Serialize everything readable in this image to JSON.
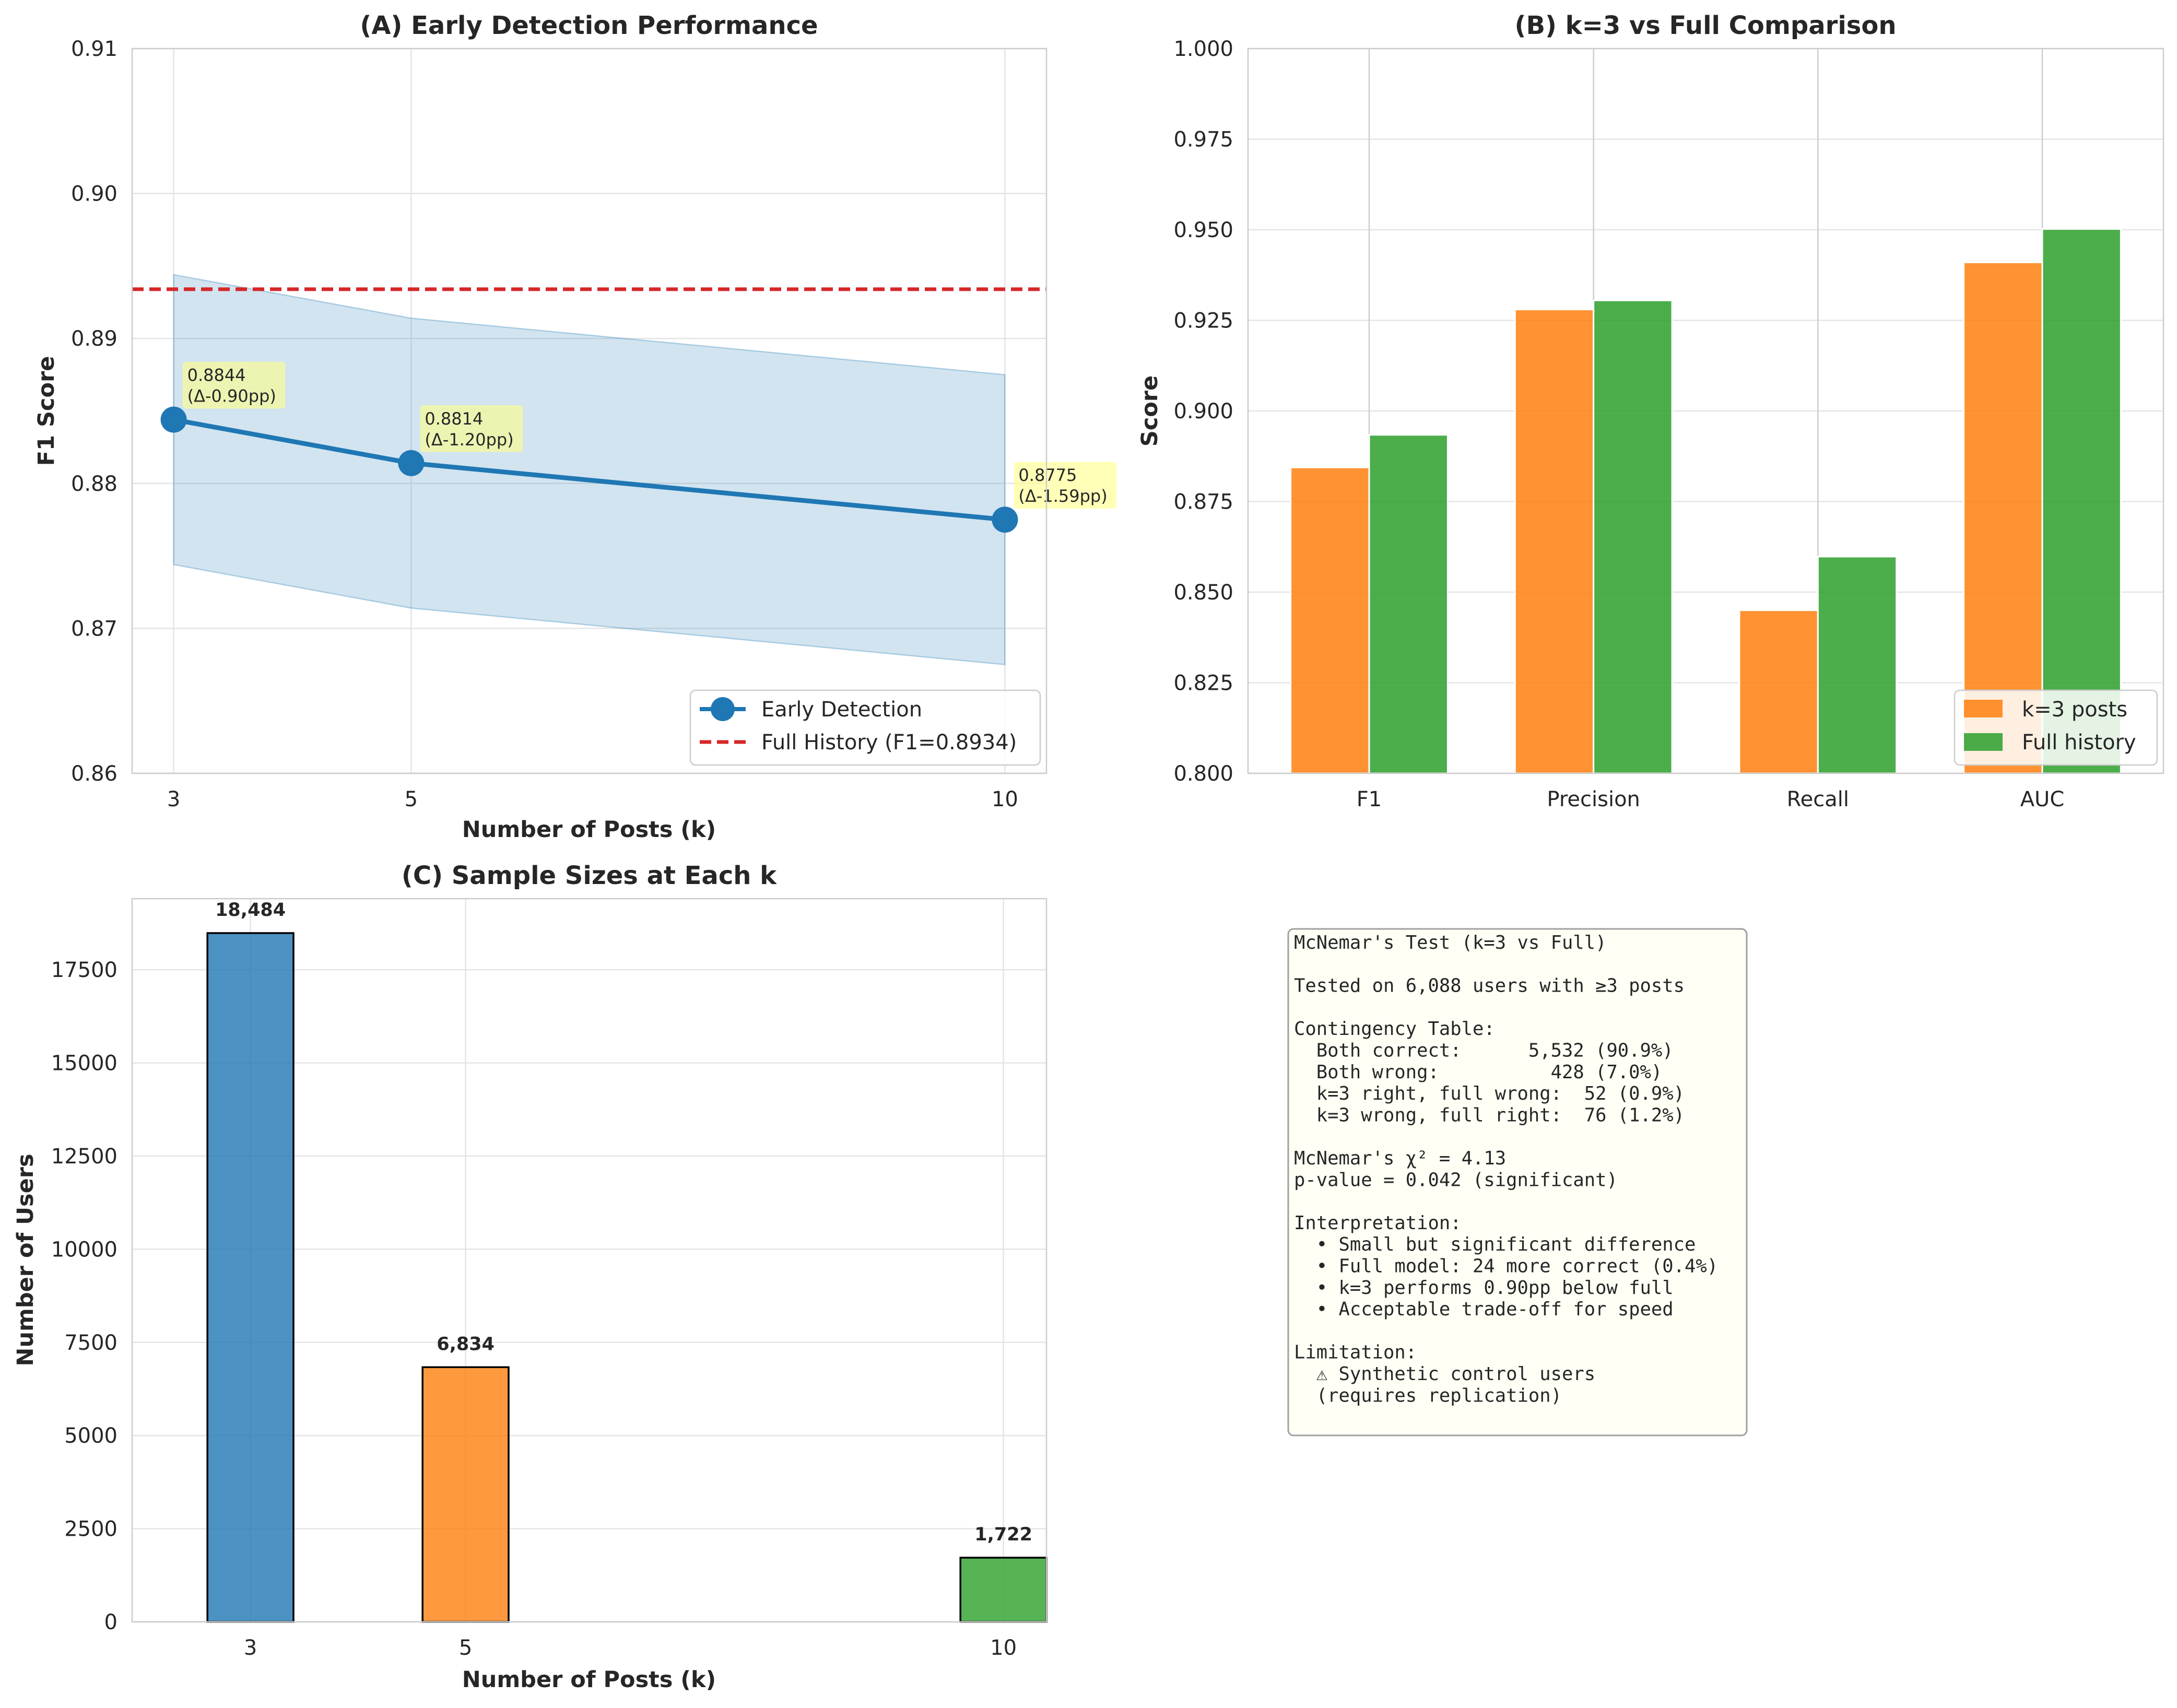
{
  "chart_data": [
    {
      "id": "A",
      "type": "line",
      "title": "(A) Early Detection Performance",
      "xlabel": "Number of Posts (k)",
      "ylabel": "F1 Score",
      "xlim": [
        2.65,
        10.35
      ],
      "ylim": [
        0.86,
        0.91
      ],
      "xticks": [
        3,
        5,
        10
      ],
      "yticks": [
        0.86,
        0.87,
        0.88,
        0.89,
        0.9,
        0.91
      ],
      "ytick_labels": [
        "0.86",
        "0.87",
        "0.88",
        "0.89",
        "0.90",
        "0.91"
      ],
      "grid": true,
      "series": [
        {
          "name": "Early Detection",
          "color": "#1f77b4",
          "x": [
            3,
            5,
            10
          ],
          "values": [
            0.8844,
            0.8814,
            0.8775
          ],
          "ci_low": [
            0.8744,
            0.8714,
            0.8675
          ],
          "ci_high": [
            0.8944,
            0.8914,
            0.8875
          ],
          "annotations": [
            [
              "0.8844",
              "(Δ-0.90pp)"
            ],
            [
              "0.8814",
              "(Δ-1.20pp)"
            ],
            [
              "0.8775",
              "(Δ-1.59pp)"
            ]
          ]
        }
      ],
      "reference_line": {
        "name": "Full History (F1=0.8934)",
        "value": 0.8934,
        "color": "#d62728"
      },
      "legend": {
        "position": "lower-right",
        "entries": [
          "Early Detection",
          "Full History (F1=0.8934)"
        ]
      }
    },
    {
      "id": "B",
      "type": "bar",
      "title": "(B) k=3 vs Full Comparison",
      "xlabel": "",
      "ylabel": "Score",
      "categories": [
        "F1",
        "Precision",
        "Recall",
        "AUC"
      ],
      "ylim": [
        0.8,
        1.0
      ],
      "yticks": [
        0.8,
        0.825,
        0.85,
        0.875,
        0.9,
        0.925,
        0.95,
        0.975,
        1.0
      ],
      "ytick_labels": [
        "0.800",
        "0.825",
        "0.850",
        "0.875",
        "0.900",
        "0.925",
        "0.950",
        "0.975",
        "1.000"
      ],
      "grid": true,
      "series": [
        {
          "name": "k=3 posts",
          "color": "#ff7f0e",
          "values": [
            0.8844,
            0.928,
            0.845,
            0.941
          ]
        },
        {
          "name": "Full history",
          "color": "#2ca02c",
          "values": [
            0.8934,
            0.9305,
            0.8598,
            0.9502
          ]
        }
      ],
      "legend": {
        "position": "lower-right",
        "entries": [
          "k=3 posts",
          "Full history"
        ]
      }
    },
    {
      "id": "C",
      "type": "bar",
      "title": "(C) Sample Sizes at Each k",
      "xlabel": "Number of Posts (k)",
      "ylabel": "Number of Users",
      "x": [
        3,
        5,
        10
      ],
      "categories": [
        "3",
        "5",
        "10"
      ],
      "values": [
        18484,
        6834,
        1722
      ],
      "value_labels": [
        "18,484",
        "6,834",
        "1,722"
      ],
      "colors": [
        "#1f77b4",
        "#ff7f0e",
        "#2ca02c"
      ],
      "xlim": [
        1.9,
        10.4
      ],
      "ylim": [
        0,
        19408
      ],
      "yticks": [
        0,
        2500,
        5000,
        7500,
        10000,
        12500,
        15000,
        17500
      ],
      "ytick_labels": [
        "0",
        "2500",
        "5000",
        "7500",
        "10000",
        "12500",
        "15000",
        "17500"
      ],
      "grid": true
    }
  ],
  "stats_box": {
    "lines": [
      "McNemar's Test (k=3 vs Full)",
      "",
      "Tested on 6,088 users with ≥3 posts",
      "",
      "Contingency Table:",
      "  Both correct:      5,532 (90.9%)",
      "  Both wrong:          428 (7.0%)",
      "  k=3 right, full wrong:  52 (0.9%)",
      "  k=3 wrong, full right:  76 (1.2%)",
      "",
      "McNemar's χ² = 4.13",
      "p-value = 0.042 (significant)",
      "",
      "Interpretation:",
      "  • Small but significant difference",
      "  • Full model: 24 more correct (0.4%)",
      "  • k=3 performs 0.90pp below full",
      "  • Acceptable trade-off for speed",
      "",
      "Limitation:",
      "  ⚠ Synthetic control users",
      "  (requires replication)"
    ]
  }
}
